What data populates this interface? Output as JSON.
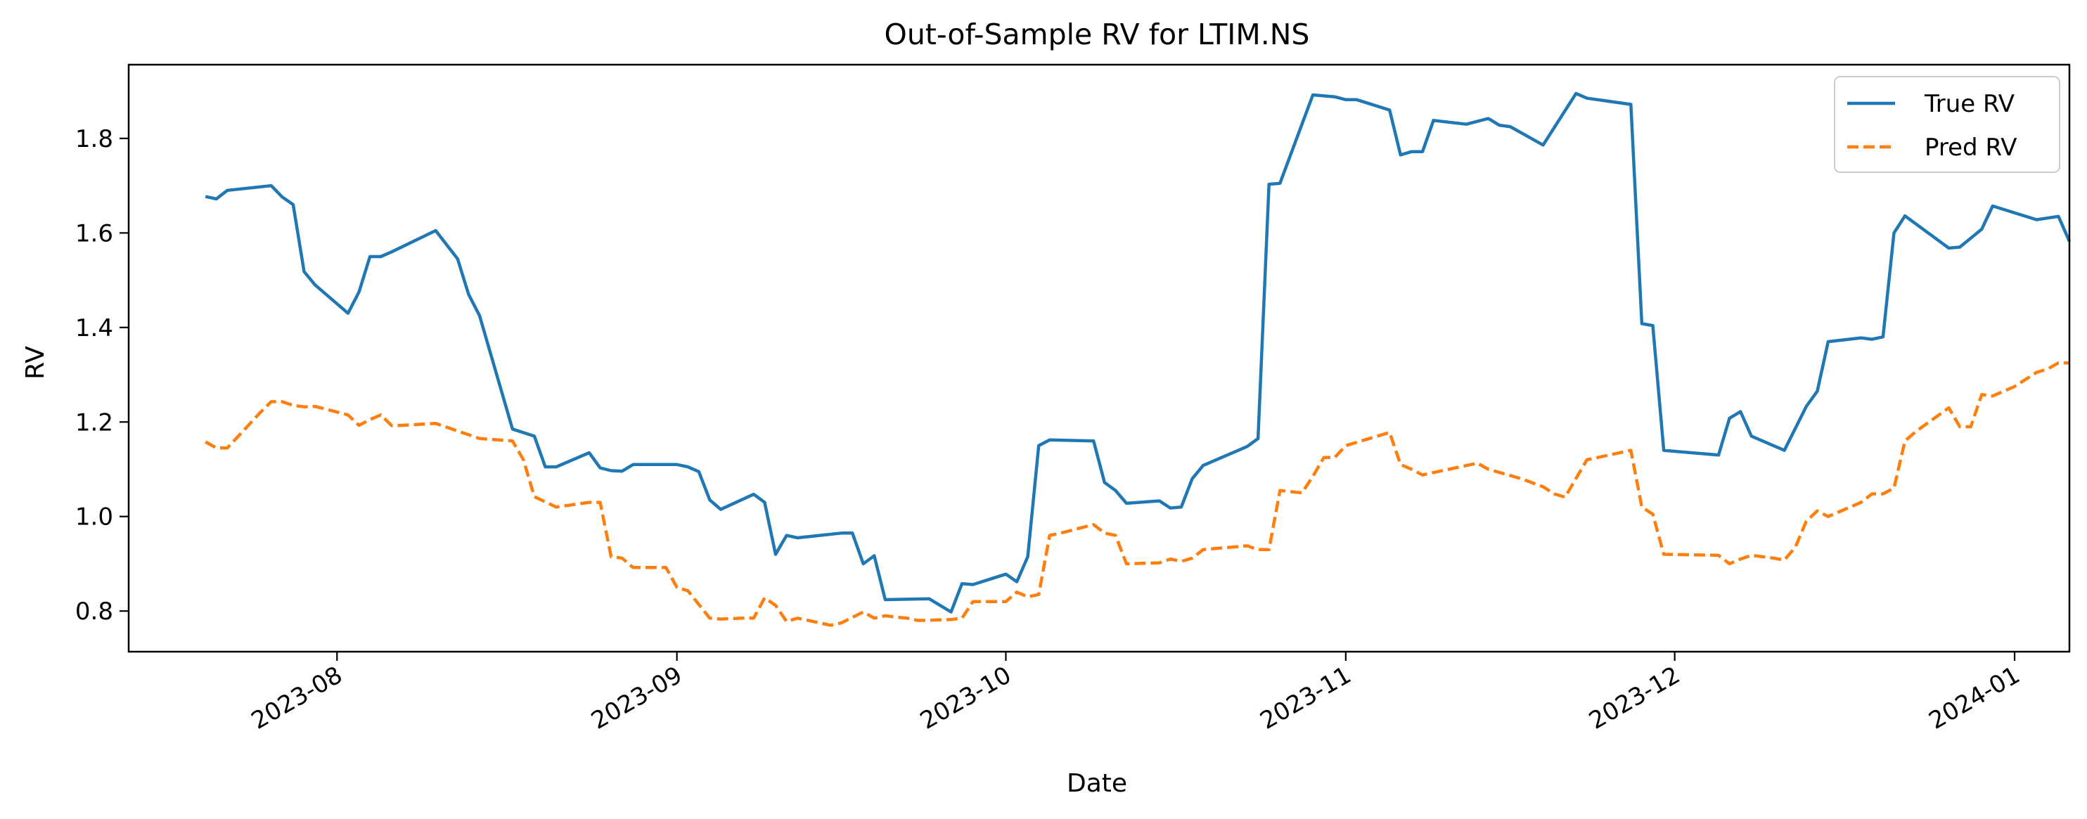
{
  "chart_data": {
    "type": "line",
    "title": "Out-of-Sample RV for LTIM.NS",
    "xlabel": "Date",
    "ylabel": "RV",
    "x_axis": "date",
    "xlim": [
      "2023-07-13",
      "2024-01-06"
    ],
    "ylim": [
      0.714,
      1.956
    ],
    "x_ticks": [
      "2023-08-01",
      "2023-09-01",
      "2023-10-01",
      "2023-11-01",
      "2023-12-01",
      "2024-01-01"
    ],
    "x_tick_labels": [
      "2023-08",
      "2023-09",
      "2023-10",
      "2023-11",
      "2023-12",
      "2024-01"
    ],
    "y_ticks": [
      0.8,
      1.0,
      1.2,
      1.4,
      1.6,
      1.8
    ],
    "y_tick_labels": [
      "0.8",
      "1.0",
      "1.2",
      "1.4",
      "1.6",
      "1.8"
    ],
    "grid": false,
    "legend_position": "top-right",
    "series": [
      {
        "name": "True RV",
        "color": "#1f77b4",
        "dash": "solid",
        "points": [
          [
            "2023-07-20",
            1.677
          ],
          [
            "2023-07-21",
            1.672
          ],
          [
            "2023-07-22",
            1.69
          ],
          [
            "2023-07-26",
            1.7
          ],
          [
            "2023-07-27",
            1.676
          ],
          [
            "2023-07-28",
            1.66
          ],
          [
            "2023-07-29",
            1.518
          ],
          [
            "2023-07-30",
            1.49
          ],
          [
            "2023-08-02",
            1.43
          ],
          [
            "2023-08-03",
            1.475
          ],
          [
            "2023-08-04",
            1.55
          ],
          [
            "2023-08-05",
            1.55
          ],
          [
            "2023-08-06",
            1.56
          ],
          [
            "2023-08-10",
            1.605
          ],
          [
            "2023-08-12",
            1.545
          ],
          [
            "2023-08-13",
            1.47
          ],
          [
            "2023-08-14",
            1.425
          ],
          [
            "2023-08-17",
            1.185
          ],
          [
            "2023-08-19",
            1.17
          ],
          [
            "2023-08-20",
            1.105
          ],
          [
            "2023-08-21",
            1.105
          ],
          [
            "2023-08-24",
            1.135
          ],
          [
            "2023-08-25",
            1.103
          ],
          [
            "2023-08-26",
            1.097
          ],
          [
            "2023-08-27",
            1.096
          ],
          [
            "2023-08-28",
            1.11
          ],
          [
            "2023-09-01",
            1.11
          ],
          [
            "2023-09-02",
            1.105
          ],
          [
            "2023-09-03",
            1.095
          ],
          [
            "2023-09-04",
            1.035
          ],
          [
            "2023-09-05",
            1.015
          ],
          [
            "2023-09-08",
            1.047
          ],
          [
            "2023-09-09",
            1.03
          ],
          [
            "2023-09-10",
            0.92
          ],
          [
            "2023-09-11",
            0.96
          ],
          [
            "2023-09-12",
            0.955
          ],
          [
            "2023-09-16",
            0.965
          ],
          [
            "2023-09-17",
            0.965
          ],
          [
            "2023-09-18",
            0.9
          ],
          [
            "2023-09-19",
            0.917
          ],
          [
            "2023-09-20",
            0.824
          ],
          [
            "2023-09-24",
            0.826
          ],
          [
            "2023-09-26",
            0.798
          ],
          [
            "2023-09-27",
            0.858
          ],
          [
            "2023-09-28",
            0.856
          ],
          [
            "2023-10-01",
            0.878
          ],
          [
            "2023-10-02",
            0.862
          ],
          [
            "2023-10-03",
            0.915
          ],
          [
            "2023-10-04",
            1.15
          ],
          [
            "2023-10-05",
            1.162
          ],
          [
            "2023-10-09",
            1.16
          ],
          [
            "2023-10-10",
            1.072
          ],
          [
            "2023-10-11",
            1.055
          ],
          [
            "2023-10-12",
            1.028
          ],
          [
            "2023-10-15",
            1.033
          ],
          [
            "2023-10-16",
            1.018
          ],
          [
            "2023-10-17",
            1.02
          ],
          [
            "2023-10-18",
            1.08
          ],
          [
            "2023-10-19",
            1.108
          ],
          [
            "2023-10-23",
            1.148
          ],
          [
            "2023-10-24",
            1.165
          ],
          [
            "2023-10-25",
            1.703
          ],
          [
            "2023-10-26",
            1.705
          ],
          [
            "2023-10-29",
            1.892
          ],
          [
            "2023-10-31",
            1.888
          ],
          [
            "2023-11-01",
            1.882
          ],
          [
            "2023-11-02",
            1.882
          ],
          [
            "2023-11-05",
            1.86
          ],
          [
            "2023-11-06",
            1.765
          ],
          [
            "2023-11-07",
            1.772
          ],
          [
            "2023-11-08",
            1.772
          ],
          [
            "2023-11-09",
            1.838
          ],
          [
            "2023-11-12",
            1.83
          ],
          [
            "2023-11-14",
            1.842
          ],
          [
            "2023-11-15",
            1.828
          ],
          [
            "2023-11-16",
            1.825
          ],
          [
            "2023-11-19",
            1.786
          ],
          [
            "2023-11-22",
            1.895
          ],
          [
            "2023-11-23",
            1.885
          ],
          [
            "2023-11-27",
            1.872
          ],
          [
            "2023-11-28",
            1.408
          ],
          [
            "2023-11-29",
            1.404
          ],
          [
            "2023-11-30",
            1.14
          ],
          [
            "2023-12-05",
            1.13
          ],
          [
            "2023-12-06",
            1.208
          ],
          [
            "2023-12-07",
            1.222
          ],
          [
            "2023-12-08",
            1.17
          ],
          [
            "2023-12-11",
            1.14
          ],
          [
            "2023-12-13",
            1.233
          ],
          [
            "2023-12-14",
            1.265
          ],
          [
            "2023-12-15",
            1.37
          ],
          [
            "2023-12-18",
            1.378
          ],
          [
            "2023-12-19",
            1.375
          ],
          [
            "2023-12-20",
            1.38
          ],
          [
            "2023-12-21",
            1.6
          ],
          [
            "2023-12-22",
            1.636
          ],
          [
            "2023-12-26",
            1.568
          ],
          [
            "2023-12-27",
            1.57
          ],
          [
            "2023-12-29",
            1.608
          ],
          [
            "2023-12-30",
            1.657
          ],
          [
            "2024-01-03",
            1.628
          ],
          [
            "2024-01-05",
            1.635
          ],
          [
            "2024-01-06",
            1.582
          ]
        ]
      },
      {
        "name": "Pred RV",
        "color": "#ff7f0e",
        "dash": "dashed",
        "points": [
          [
            "2023-07-20",
            1.158
          ],
          [
            "2023-07-21",
            1.145
          ],
          [
            "2023-07-22",
            1.145
          ],
          [
            "2023-07-25",
            1.22
          ],
          [
            "2023-07-26",
            1.243
          ],
          [
            "2023-07-27",
            1.243
          ],
          [
            "2023-07-28",
            1.235
          ],
          [
            "2023-07-29",
            1.232
          ],
          [
            "2023-07-30",
            1.233
          ],
          [
            "2023-08-02",
            1.215
          ],
          [
            "2023-08-03",
            1.193
          ],
          [
            "2023-08-04",
            1.205
          ],
          [
            "2023-08-05",
            1.215
          ],
          [
            "2023-08-06",
            1.192
          ],
          [
            "2023-08-07",
            1.193
          ],
          [
            "2023-08-10",
            1.197
          ],
          [
            "2023-08-13",
            1.173
          ],
          [
            "2023-08-14",
            1.165
          ],
          [
            "2023-08-17",
            1.16
          ],
          [
            "2023-08-18",
            1.12
          ],
          [
            "2023-08-19",
            1.042
          ],
          [
            "2023-08-21",
            1.02
          ],
          [
            "2023-08-24",
            1.03
          ],
          [
            "2023-08-25",
            1.03
          ],
          [
            "2023-08-26",
            0.915
          ],
          [
            "2023-08-27",
            0.912
          ],
          [
            "2023-08-28",
            0.892
          ],
          [
            "2023-08-31",
            0.892
          ],
          [
            "2023-09-01",
            0.85
          ],
          [
            "2023-09-02",
            0.843
          ],
          [
            "2023-09-04",
            0.785
          ],
          [
            "2023-09-05",
            0.783
          ],
          [
            "2023-09-07",
            0.785
          ],
          [
            "2023-09-08",
            0.785
          ],
          [
            "2023-09-09",
            0.828
          ],
          [
            "2023-09-10",
            0.812
          ],
          [
            "2023-09-11",
            0.778
          ],
          [
            "2023-09-12",
            0.785
          ],
          [
            "2023-09-13",
            0.78
          ],
          [
            "2023-09-15",
            0.77
          ],
          [
            "2023-09-16",
            0.775
          ],
          [
            "2023-09-18",
            0.798
          ],
          [
            "2023-09-19",
            0.785
          ],
          [
            "2023-09-20",
            0.79
          ],
          [
            "2023-09-21",
            0.787
          ],
          [
            "2023-09-22",
            0.785
          ],
          [
            "2023-09-23",
            0.78
          ],
          [
            "2023-09-26",
            0.782
          ],
          [
            "2023-09-27",
            0.785
          ],
          [
            "2023-09-28",
            0.82
          ],
          [
            "2023-10-01",
            0.82
          ],
          [
            "2023-10-02",
            0.84
          ],
          [
            "2023-10-03",
            0.83
          ],
          [
            "2023-10-04",
            0.835
          ],
          [
            "2023-10-05",
            0.96
          ],
          [
            "2023-10-06",
            0.965
          ],
          [
            "2023-10-09",
            0.983
          ],
          [
            "2023-10-10",
            0.965
          ],
          [
            "2023-10-11",
            0.96
          ],
          [
            "2023-10-12",
            0.9
          ],
          [
            "2023-10-15",
            0.902
          ],
          [
            "2023-10-16",
            0.91
          ],
          [
            "2023-10-17",
            0.905
          ],
          [
            "2023-10-18",
            0.912
          ],
          [
            "2023-10-19",
            0.93
          ],
          [
            "2023-10-20",
            0.932
          ],
          [
            "2023-10-23",
            0.938
          ],
          [
            "2023-10-24",
            0.93
          ],
          [
            "2023-10-25",
            0.93
          ],
          [
            "2023-10-26",
            1.055
          ],
          [
            "2023-10-28",
            1.05
          ],
          [
            "2023-10-29",
            1.085
          ],
          [
            "2023-10-30",
            1.125
          ],
          [
            "2023-10-31",
            1.125
          ],
          [
            "2023-11-01",
            1.15
          ],
          [
            "2023-11-05",
            1.178
          ],
          [
            "2023-11-06",
            1.11
          ],
          [
            "2023-11-07",
            1.1
          ],
          [
            "2023-11-08",
            1.088
          ],
          [
            "2023-11-13",
            1.113
          ],
          [
            "2023-11-14",
            1.1
          ],
          [
            "2023-11-17",
            1.08
          ],
          [
            "2023-11-19",
            1.063
          ],
          [
            "2023-11-20",
            1.048
          ],
          [
            "2023-11-21",
            1.041
          ],
          [
            "2023-11-23",
            1.12
          ],
          [
            "2023-11-26",
            1.135
          ],
          [
            "2023-11-27",
            1.14
          ],
          [
            "2023-11-28",
            1.02
          ],
          [
            "2023-11-29",
            1.005
          ],
          [
            "2023-11-30",
            0.92
          ],
          [
            "2023-12-05",
            0.918
          ],
          [
            "2023-12-06",
            0.9
          ],
          [
            "2023-12-07",
            0.91
          ],
          [
            "2023-12-08",
            0.918
          ],
          [
            "2023-12-10",
            0.912
          ],
          [
            "2023-12-11",
            0.908
          ],
          [
            "2023-12-12",
            0.935
          ],
          [
            "2023-12-13",
            0.99
          ],
          [
            "2023-12-14",
            1.012
          ],
          [
            "2023-12-15",
            1.0
          ],
          [
            "2023-12-18",
            1.03
          ],
          [
            "2023-12-19",
            1.048
          ],
          [
            "2023-12-20",
            1.048
          ],
          [
            "2023-12-21",
            1.06
          ],
          [
            "2023-12-22",
            1.16
          ],
          [
            "2023-12-23",
            1.18
          ],
          [
            "2023-12-26",
            1.23
          ],
          [
            "2023-12-27",
            1.19
          ],
          [
            "2023-12-28",
            1.19
          ],
          [
            "2023-12-29",
            1.258
          ],
          [
            "2023-12-30",
            1.255
          ],
          [
            "2024-01-01",
            1.275
          ],
          [
            "2024-01-03",
            1.305
          ],
          [
            "2024-01-04",
            1.312
          ],
          [
            "2024-01-05",
            1.325
          ],
          [
            "2024-01-06",
            1.325
          ]
        ]
      }
    ]
  }
}
